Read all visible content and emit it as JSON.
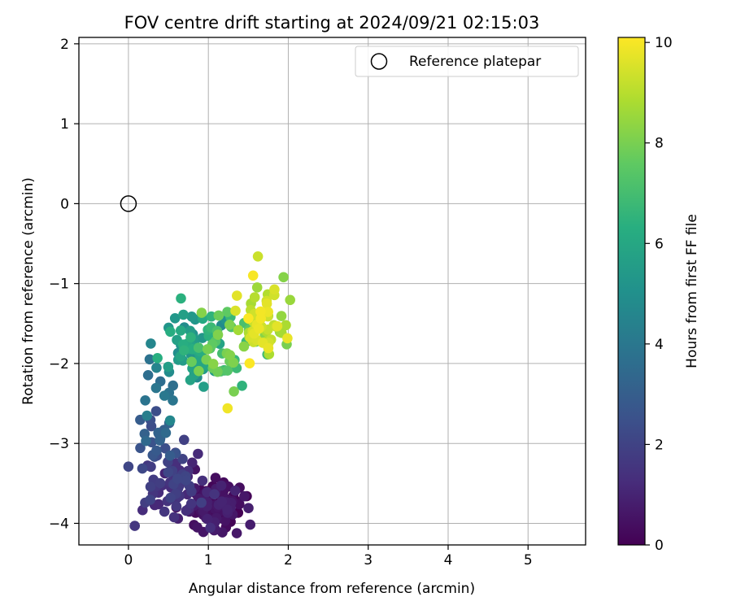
{
  "chart_data": {
    "type": "scatter",
    "title": "FOV centre drift starting at 2024/09/21 02:15:03",
    "xlabel": "Angular distance from reference (arcmin)",
    "ylabel": "Rotation from reference (arcmin)",
    "xlim": [
      -0.62,
      5.72
    ],
    "ylim": [
      -4.27,
      2.08
    ],
    "xticks": [
      0,
      1,
      2,
      3,
      4,
      5
    ],
    "yticks": [
      2,
      1,
      0,
      -1,
      -2,
      -3,
      -4
    ],
    "grid": true,
    "legend": {
      "placement": "top-right",
      "entries": [
        "Reference platepar"
      ]
    },
    "reference_point": {
      "name": "Reference platepar",
      "x": 0.0,
      "y": 0.0
    },
    "colorbar": {
      "label": "Hours from first FF file",
      "range": [
        0,
        10.1
      ],
      "ticks": [
        0,
        2,
        4,
        6,
        8,
        10
      ],
      "colormap": "viridis"
    },
    "clusters": [
      {
        "t": [
          0.0,
          1.0
        ],
        "cx": 1.08,
        "cy": -3.78,
        "sx": 0.17,
        "sy": 0.14,
        "n": 100
      },
      {
        "t": [
          1.0,
          2.2
        ],
        "cx": 0.58,
        "cy": -3.55,
        "sx": 0.2,
        "sy": 0.2,
        "n": 70
      },
      {
        "t": [
          2.2,
          3.5
        ],
        "cx": 0.32,
        "cy": -2.85,
        "sx": 0.13,
        "sy": 0.18,
        "n": 22
      },
      {
        "t": [
          3.5,
          4.8
        ],
        "cx": 0.45,
        "cy": -2.3,
        "sx": 0.13,
        "sy": 0.22,
        "n": 12
      },
      {
        "t": [
          4.8,
          6.5
        ],
        "cx": 0.85,
        "cy": -1.85,
        "sx": 0.18,
        "sy": 0.22,
        "n": 55
      },
      {
        "t": [
          6.5,
          8.3
        ],
        "cx": 1.25,
        "cy": -1.8,
        "sx": 0.25,
        "sy": 0.2,
        "n": 40
      },
      {
        "t": [
          8.3,
          10.1
        ],
        "cx": 1.65,
        "cy": -1.45,
        "sx": 0.15,
        "sy": 0.2,
        "n": 55
      }
    ],
    "extra_points": [
      {
        "x": 0.28,
        "y": -1.75,
        "t": 4.6
      },
      {
        "x": 1.62,
        "y": -0.66,
        "t": 9.3
      },
      {
        "x": 1.94,
        "y": -0.92,
        "t": 8.2
      },
      {
        "x": 1.24,
        "y": -2.56,
        "t": 9.9
      },
      {
        "x": 1.32,
        "y": -2.35,
        "t": 8.0
      },
      {
        "x": 1.48,
        "y": -3.66,
        "t": 0.1
      },
      {
        "x": 0.87,
        "y": -3.13,
        "t": 1.2
      },
      {
        "x": 0.35,
        "y": -3.13,
        "t": 1.5
      },
      {
        "x": 0.0,
        "y": -3.29,
        "t": 2.1
      },
      {
        "x": 1.22,
        "y": -4.05,
        "t": 0.3
      },
      {
        "x": 0.82,
        "y": -4.02,
        "t": 0.4
      },
      {
        "x": 0.62,
        "y": -3.94,
        "t": 0.9
      },
      {
        "x": 1.56,
        "y": -0.9,
        "t": 10.0
      },
      {
        "x": 1.97,
        "y": -1.52,
        "t": 8.8
      },
      {
        "x": 1.98,
        "y": -1.76,
        "t": 8.0
      },
      {
        "x": 1.68,
        "y": -1.74,
        "t": 9.7
      }
    ]
  }
}
